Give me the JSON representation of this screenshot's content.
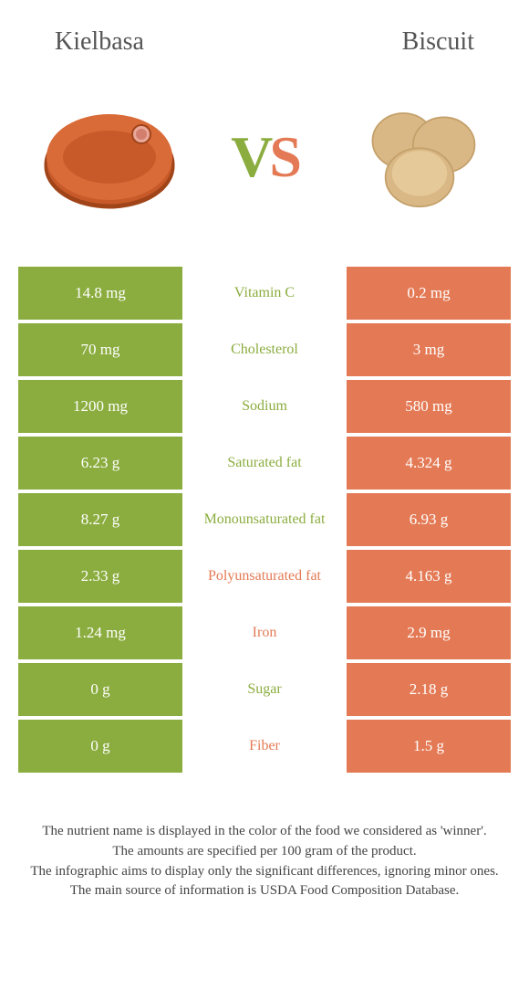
{
  "colors": {
    "left_bg": "#8bad3f",
    "right_bg": "#e47a55",
    "left_text": "#8bad3f",
    "right_text": "#e47a55",
    "vs_v": "#8bad3f",
    "vs_s": "#e47a55"
  },
  "header": {
    "left_title": "Kielbasa",
    "right_title": "Biscuit"
  },
  "vs": {
    "v": "V",
    "s": "S"
  },
  "rows": [
    {
      "left": "14.8 mg",
      "label": "Vitamin C",
      "right": "0.2 mg",
      "winner": "left"
    },
    {
      "left": "70 mg",
      "label": "Cholesterol",
      "right": "3 mg",
      "winner": "left"
    },
    {
      "left": "1200 mg",
      "label": "Sodium",
      "right": "580 mg",
      "winner": "left"
    },
    {
      "left": "6.23 g",
      "label": "Saturated fat",
      "right": "4.324 g",
      "winner": "left"
    },
    {
      "left": "8.27 g",
      "label": "Monounsaturated fat",
      "right": "6.93 g",
      "winner": "left"
    },
    {
      "left": "2.33 g",
      "label": "Polyunsaturated fat",
      "right": "4.163 g",
      "winner": "right"
    },
    {
      "left": "1.24 mg",
      "label": "Iron",
      "right": "2.9 mg",
      "winner": "right"
    },
    {
      "left": "0 g",
      "label": "Sugar",
      "right": "2.18 g",
      "winner": "left"
    },
    {
      "left": "0 g",
      "label": "Fiber",
      "right": "1.5 g",
      "winner": "right"
    }
  ],
  "footer": {
    "line1": "The nutrient name is displayed in the color of the food we considered as 'winner'.",
    "line2": "The amounts are specified per 100 gram of the product.",
    "line3": "The infographic aims to display only the significant differences, ignoring minor ones.",
    "line4": "The main source of information is USDA Food Composition Database."
  }
}
